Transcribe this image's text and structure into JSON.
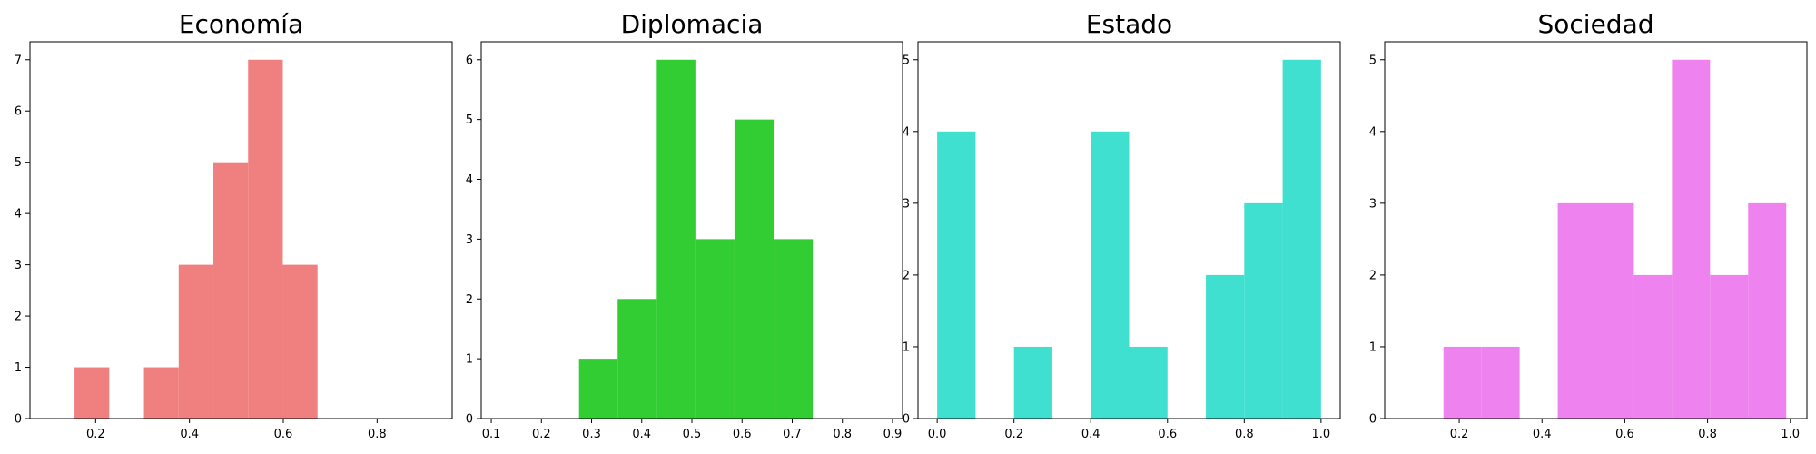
{
  "chart_data": [
    {
      "type": "bar",
      "title": "Economía",
      "color": "#F08080",
      "xlim": [
        0.06,
        0.96
      ],
      "ylim": [
        0,
        7.35
      ],
      "xticks": [
        0.2,
        0.4,
        0.6,
        0.8
      ],
      "xtick_labels": [
        "0.2",
        "0.4",
        "0.6",
        "0.8"
      ],
      "yticks": [
        0,
        1,
        2,
        3,
        4,
        5,
        6,
        7
      ],
      "ytick_labels": [
        "0",
        "1",
        "2",
        "3",
        "4",
        "5",
        "6",
        "7"
      ],
      "bins": [
        {
          "x0": 0.155,
          "x1": 0.229,
          "count": 1
        },
        {
          "x0": 0.229,
          "x1": 0.303,
          "count": 0
        },
        {
          "x0": 0.303,
          "x1": 0.377,
          "count": 1
        },
        {
          "x0": 0.377,
          "x1": 0.451,
          "count": 3
        },
        {
          "x0": 0.451,
          "x1": 0.525,
          "count": 5
        },
        {
          "x0": 0.525,
          "x1": 0.599,
          "count": 7
        },
        {
          "x0": 0.599,
          "x1": 0.673,
          "count": 3
        }
      ]
    },
    {
      "type": "bar",
      "title": "Diplomacia",
      "color": "#32CD32",
      "xlim": [
        0.08,
        0.92
      ],
      "ylim": [
        0,
        6.3
      ],
      "xticks": [
        0.1,
        0.2,
        0.3,
        0.4,
        0.5,
        0.6,
        0.7,
        0.8,
        0.9
      ],
      "xtick_labels": [
        "0.1",
        "0.2",
        "0.3",
        "0.4",
        "0.5",
        "0.6",
        "0.7",
        "0.8",
        "0.9"
      ],
      "yticks": [
        0,
        1,
        2,
        3,
        4,
        5,
        6
      ],
      "ytick_labels": [
        "0",
        "1",
        "2",
        "3",
        "4",
        "5",
        "6"
      ],
      "bins": [
        {
          "x0": 0.275,
          "x1": 0.352,
          "count": 1
        },
        {
          "x0": 0.352,
          "x1": 0.43,
          "count": 2
        },
        {
          "x0": 0.43,
          "x1": 0.507,
          "count": 6
        },
        {
          "x0": 0.507,
          "x1": 0.585,
          "count": 3
        },
        {
          "x0": 0.585,
          "x1": 0.663,
          "count": 5
        },
        {
          "x0": 0.663,
          "x1": 0.741,
          "count": 3
        }
      ]
    },
    {
      "type": "bar",
      "title": "Estado",
      "color": "#40E0D0",
      "xlim": [
        -0.05,
        1.05
      ],
      "ylim": [
        0,
        5.25
      ],
      "xticks": [
        0.0,
        0.2,
        0.4,
        0.6,
        0.8,
        1.0
      ],
      "xtick_labels": [
        "0.0",
        "0.2",
        "0.4",
        "0.6",
        "0.8",
        "1.0"
      ],
      "yticks": [
        0,
        1,
        2,
        3,
        4,
        5
      ],
      "ytick_labels": [
        "0",
        "1",
        "2",
        "3",
        "4",
        "5"
      ],
      "bins": [
        {
          "x0": 0.0,
          "x1": 0.1,
          "count": 4
        },
        {
          "x0": 0.1,
          "x1": 0.2,
          "count": 0
        },
        {
          "x0": 0.2,
          "x1": 0.3,
          "count": 1
        },
        {
          "x0": 0.3,
          "x1": 0.4,
          "count": 0
        },
        {
          "x0": 0.4,
          "x1": 0.5,
          "count": 4
        },
        {
          "x0": 0.5,
          "x1": 0.6,
          "count": 1
        },
        {
          "x0": 0.6,
          "x1": 0.7,
          "count": 0
        },
        {
          "x0": 0.7,
          "x1": 0.8,
          "count": 2
        },
        {
          "x0": 0.8,
          "x1": 0.9,
          "count": 3
        },
        {
          "x0": 0.9,
          "x1": 1.0,
          "count": 5
        }
      ]
    },
    {
      "type": "bar",
      "title": "Sociedad",
      "color": "#EE82EE",
      "xlim": [
        0.02,
        1.04
      ],
      "ylim": [
        0,
        5.25
      ],
      "xticks": [
        0.2,
        0.4,
        0.6,
        0.8,
        1.0
      ],
      "xtick_labels": [
        "0.2",
        "0.4",
        "0.6",
        "0.8",
        "1.0"
      ],
      "yticks": [
        0,
        1,
        2,
        3,
        4,
        5
      ],
      "ytick_labels": [
        "0",
        "1",
        "2",
        "3",
        "4",
        "5"
      ],
      "bins": [
        {
          "x0": 0.162,
          "x1": 0.254,
          "count": 1
        },
        {
          "x0": 0.254,
          "x1": 0.346,
          "count": 1
        },
        {
          "x0": 0.346,
          "x1": 0.438,
          "count": 0
        },
        {
          "x0": 0.438,
          "x1": 0.53,
          "count": 3
        },
        {
          "x0": 0.53,
          "x1": 0.622,
          "count": 3
        },
        {
          "x0": 0.622,
          "x1": 0.714,
          "count": 2
        },
        {
          "x0": 0.714,
          "x1": 0.806,
          "count": 5
        },
        {
          "x0": 0.806,
          "x1": 0.898,
          "count": 2
        },
        {
          "x0": 0.898,
          "x1": 0.99,
          "count": 3
        }
      ]
    }
  ]
}
